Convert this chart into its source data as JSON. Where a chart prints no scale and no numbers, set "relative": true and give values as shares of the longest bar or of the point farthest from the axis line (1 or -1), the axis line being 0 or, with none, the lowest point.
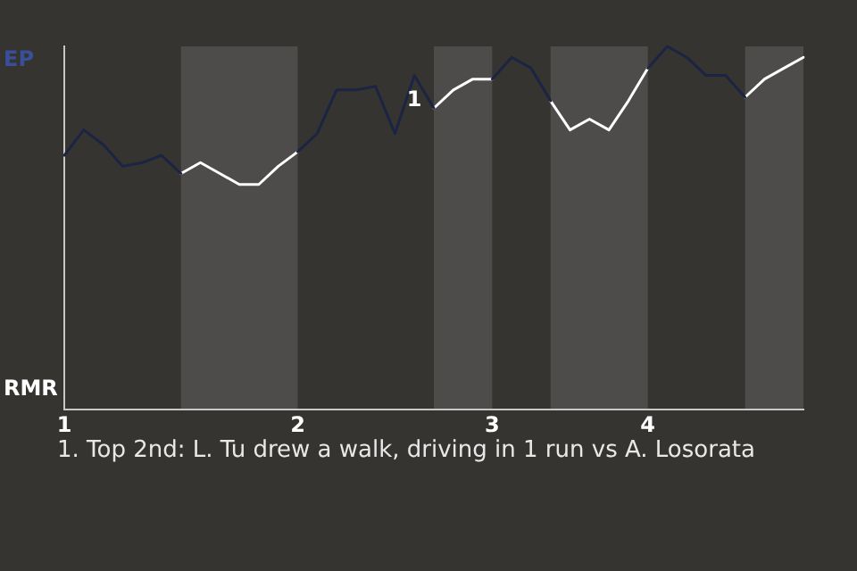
{
  "chart_data": {
    "type": "line",
    "relative": true,
    "categories": [
      "1",
      null,
      null,
      null,
      null,
      null,
      null,
      null,
      null,
      null,
      null,
      null,
      "2",
      null,
      null,
      null,
      null,
      null,
      null,
      null,
      null,
      null,
      "3",
      null,
      null,
      null,
      null,
      null,
      null,
      null,
      "4",
      null,
      null,
      null,
      null,
      null,
      null,
      null,
      null
    ],
    "series": [
      {
        "color": "#1b2442",
        "values": [
          0.7,
          0.77,
          0.73,
          0.67,
          0.68,
          0.7,
          0.65,
          null,
          null,
          null,
          null,
          null,
          0.71,
          0.76,
          0.88,
          0.88,
          0.89,
          0.76,
          0.92,
          0.83,
          null,
          null,
          0.91,
          0.97,
          0.94,
          0.85,
          null,
          null,
          null,
          null,
          0.94,
          1,
          0.97,
          0.92,
          0.92,
          0.86,
          null,
          null,
          null
        ]
      },
      {
        "color": "#ffffff",
        "values": [
          null,
          null,
          null,
          null,
          null,
          null,
          0.65,
          0.68,
          0.65,
          0.62,
          0.62,
          0.67,
          0.71,
          null,
          null,
          null,
          null,
          null,
          null,
          0.83,
          0.88,
          0.91,
          0.91,
          null,
          null,
          0.85,
          0.77,
          0.8,
          0.77,
          0.85,
          0.94,
          null,
          null,
          null,
          null,
          0.86,
          0.91,
          0.94,
          0.97
        ]
      }
    ],
    "marker": "none",
    "line_style": "solid",
    "legend": false,
    "annotations": [
      "EP",
      "RMR",
      "1. Top 2nd: L. Tu drew a walk, driving in 1 run vs A. Losorata",
      {
        "text": "1",
        "y": 0.92
      }
    ]
  }
}
